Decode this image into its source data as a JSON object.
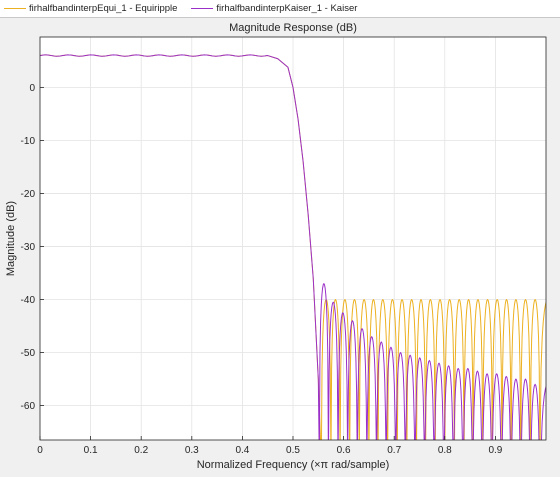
{
  "legend": {
    "items": [
      {
        "label": "firhalfbandinterpEqui_1 - Equiripple",
        "color": "#edb120"
      },
      {
        "label": "firhalfbandinterpKaiser_1 - Kaiser",
        "color": "#9b30c9"
      }
    ]
  },
  "chart_data": {
    "type": "line",
    "title": "Magnitude Response (dB)",
    "xlabel": "Normalized Frequency (×π rad/sample)",
    "ylabel": "Magnitude (dB)",
    "xlim": [
      0,
      1
    ],
    "ylim": [
      -66.5,
      9.5
    ],
    "x_ticks": [
      0,
      0.1,
      0.2,
      0.3,
      0.4,
      0.5,
      0.6,
      0.7,
      0.8,
      0.9
    ],
    "x_tick_labels": [
      "0",
      "0.1",
      "0.2",
      "0.3",
      "0.4",
      "0.5",
      "0.6",
      "0.7",
      "0.8",
      "0.9"
    ],
    "y_ticks": [
      0,
      -10,
      -20,
      -30,
      -40,
      -50,
      -60
    ],
    "y_tick_labels": [
      "0",
      "-10",
      "-20",
      "-30",
      "-40",
      "-50",
      "-60"
    ],
    "grid": true,
    "legend_placement": "top",
    "series": [
      {
        "name": "firhalfbandinterpEqui_1 - Equiripple",
        "color": "#edb120",
        "passband_level_db": 6.0,
        "passband_edge": 0.45,
        "transition_curve": [
          [
            0.45,
            6.0
          ],
          [
            0.47,
            5.4
          ],
          [
            0.49,
            3.8
          ],
          [
            0.5,
            0.0
          ],
          [
            0.51,
            -6.0
          ],
          [
            0.52,
            -14.0
          ],
          [
            0.53,
            -24.0
          ],
          [
            0.54,
            -36.0
          ],
          [
            0.55,
            -55.0
          ]
        ],
        "stopband_nulls": [
          0.556,
          0.575,
          0.593,
          0.612,
          0.631,
          0.65,
          0.668,
          0.687,
          0.706,
          0.725,
          0.744,
          0.762,
          0.781,
          0.8,
          0.819,
          0.838,
          0.856,
          0.875,
          0.894,
          0.913,
          0.931,
          0.95,
          0.969,
          0.988
        ],
        "stopband_peak_db": -40.0
      },
      {
        "name": "firhalfbandinterpKaiser_1 - Kaiser",
        "color": "#9b30c9",
        "passband_level_db": 6.0,
        "passband_edge": 0.45,
        "transition_curve": [
          [
            0.45,
            6.0
          ],
          [
            0.47,
            5.4
          ],
          [
            0.49,
            3.8
          ],
          [
            0.5,
            0.0
          ],
          [
            0.51,
            -6.0
          ],
          [
            0.52,
            -14.0
          ],
          [
            0.53,
            -24.0
          ],
          [
            0.54,
            -36.0
          ],
          [
            0.55,
            -55.0
          ]
        ],
        "stopband_nulls": [
          0.552,
          0.57,
          0.589,
          0.608,
          0.627,
          0.646,
          0.665,
          0.684,
          0.703,
          0.722,
          0.741,
          0.76,
          0.779,
          0.798,
          0.817,
          0.836,
          0.855,
          0.874,
          0.893,
          0.912,
          0.931,
          0.95,
          0.969,
          0.988
        ],
        "stopband_peaks_db": [
          -37.0,
          -40.5,
          -42.5,
          -44.0,
          -45.5,
          -47.0,
          -48.0,
          -49.0,
          -50.0,
          -50.5,
          -51.0,
          -51.5,
          -52.0,
          -52.5,
          -53.0,
          -53.0,
          -53.5,
          -54.0,
          -54.0,
          -54.5,
          -55.0,
          -55.0,
          -56.0
        ]
      }
    ]
  }
}
